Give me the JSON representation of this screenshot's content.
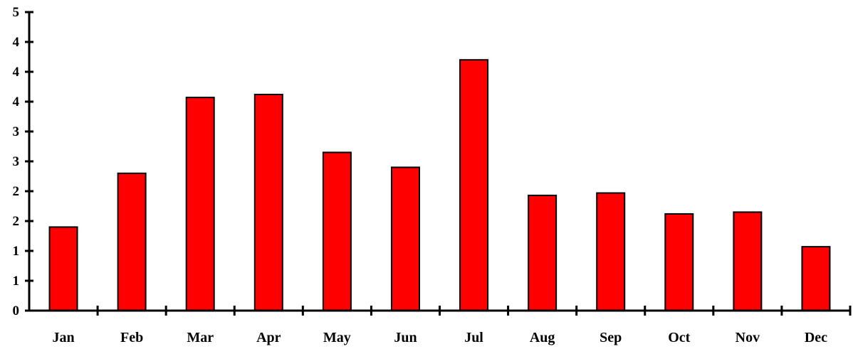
{
  "chart_data": {
    "type": "bar",
    "categories": [
      "Jan",
      "Feb",
      "Mar",
      "Apr",
      "May",
      "Jun",
      "Jul",
      "Aug",
      "Sep",
      "Oct",
      "Nov",
      "Dec"
    ],
    "values": [
      1.4,
      2.3,
      3.57,
      3.62,
      2.65,
      2.4,
      4.2,
      1.93,
      1.97,
      1.62,
      1.65,
      1.07
    ],
    "ytick_values": [
      0,
      0.5,
      1,
      1.5,
      2,
      2.5,
      3,
      3.5,
      4,
      4.5,
      5
    ],
    "ytick_labels": [
      "0",
      "1",
      "1",
      "2",
      "2",
      "3",
      "3",
      "4",
      "4",
      "4",
      "5"
    ],
    "ylim": [
      0,
      5
    ],
    "title": "",
    "xlabel": "",
    "ylabel": "",
    "grid": false,
    "bar_color": "#ff0000"
  }
}
